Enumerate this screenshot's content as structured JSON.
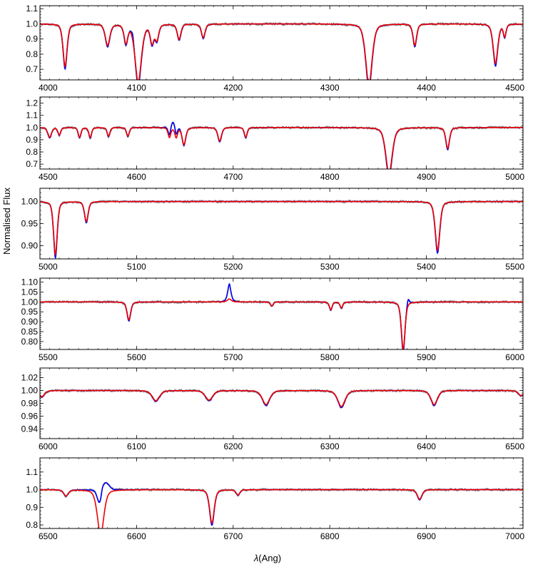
{
  "figure": {
    "ylabel": "Normalised Flux",
    "xlabel_prefix": "λ",
    "xlabel_unit": "(Ang)",
    "colors": {
      "observed": "#808080",
      "model_blue": "#0000ee",
      "model_red": "#ee0000",
      "frame": "#000000"
    }
  },
  "chart_data": [
    {
      "type": "line",
      "xlim": [
        4000,
        4500
      ],
      "ylim": [
        0.63,
        1.12
      ],
      "xticks": [
        4000,
        4100,
        4200,
        4300,
        4400,
        4500
      ],
      "yticks": [
        "0.7",
        "0.8",
        "0.9",
        "1.0",
        "1.1"
      ],
      "lines": [
        {
          "c": 4026,
          "d": 0.28,
          "w": 2.2
        },
        {
          "c": 4070,
          "d": 0.14,
          "w": 2.5
        },
        {
          "c": 4089,
          "d": 0.12,
          "w": 2.0
        },
        {
          "c": 4101.7,
          "d": 0.38,
          "w": 3.5
        },
        {
          "c": 4116,
          "d": 0.12,
          "w": 2.0
        },
        {
          "c": 4121,
          "d": 0.1,
          "w": 2.0
        },
        {
          "c": 4144,
          "d": 0.1,
          "w": 2.0
        },
        {
          "c": 4169,
          "d": 0.09,
          "w": 2.0
        },
        {
          "c": 4340.5,
          "d": 0.4,
          "w": 3.5
        },
        {
          "c": 4388,
          "d": 0.14,
          "w": 2.0
        },
        {
          "c": 4471.5,
          "d": 0.26,
          "w": 2.5
        },
        {
          "c": 4481,
          "d": 0.08,
          "w": 1.5
        }
      ],
      "emissions": [
        {
          "c": 4096,
          "h": 0.04,
          "w": 1.5,
          "s": "b"
        }
      ]
    },
    {
      "type": "line",
      "xlim": [
        4500,
        5000
      ],
      "ylim": [
        0.66,
        1.25
      ],
      "xticks": [
        4500,
        4600,
        4700,
        4800,
        4900,
        5000
      ],
      "yticks": [
        "0.7",
        "0.8",
        "0.9",
        "1.0",
        "1.1",
        "1.2"
      ],
      "lines": [
        {
          "c": 4510,
          "d": 0.08,
          "w": 2.0
        },
        {
          "c": 4520,
          "d": 0.06,
          "w": 1.5
        },
        {
          "c": 4541,
          "d": 0.08,
          "w": 1.5
        },
        {
          "c": 4552,
          "d": 0.08,
          "w": 1.5
        },
        {
          "c": 4571,
          "d": 0.07,
          "w": 1.5
        },
        {
          "c": 4591,
          "d": 0.07,
          "w": 1.5
        },
        {
          "c": 4634,
          "d": 0.08,
          "w": 1.5
        },
        {
          "c": 4641,
          "d": 0.08,
          "w": 1.5
        },
        {
          "c": 4649,
          "d": 0.14,
          "w": 2.0
        },
        {
          "c": 4686,
          "d": 0.11,
          "w": 2.0
        },
        {
          "c": 4713,
          "d": 0.08,
          "w": 1.5
        },
        {
          "c": 4861.3,
          "d": 0.38,
          "w": 3.5
        },
        {
          "c": 4922,
          "d": 0.17,
          "w": 2.0
        }
      ],
      "emissions": [
        {
          "c": 4638,
          "h": 0.06,
          "w": 4.0,
          "s": "b"
        }
      ]
    },
    {
      "type": "line",
      "xlim": [
        5000,
        5500
      ],
      "ylim": [
        0.87,
        1.03
      ],
      "xticks": [
        5000,
        5100,
        5200,
        5300,
        5400,
        5500
      ],
      "yticks": [
        "0.90",
        "0.95",
        "1.00"
      ],
      "lines": [
        {
          "c": 5016,
          "d": 0.12,
          "w": 2.0
        },
        {
          "c": 5048,
          "d": 0.045,
          "w": 2.0
        },
        {
          "c": 5411.5,
          "d": 0.11,
          "w": 2.5
        }
      ],
      "emissions": []
    },
    {
      "type": "line",
      "xlim": [
        5500,
        6000
      ],
      "ylim": [
        0.76,
        1.12
      ],
      "xticks": [
        5500,
        5600,
        5700,
        5800,
        5900,
        6000
      ],
      "yticks": [
        "0.80",
        "0.85",
        "0.90",
        "0.95",
        "1.00",
        "1.05",
        "1.10"
      ],
      "lines": [
        {
          "c": 5592,
          "d": 0.09,
          "w": 2.0
        },
        {
          "c": 5740,
          "d": 0.02,
          "w": 1.5
        },
        {
          "c": 5801,
          "d": 0.04,
          "w": 1.5
        },
        {
          "c": 5812,
          "d": 0.03,
          "w": 1.5
        },
        {
          "c": 5876,
          "d": 0.24,
          "w": 2.0
        }
      ],
      "emissions": [
        {
          "c": 5696,
          "h": 0.07,
          "w": 2.0,
          "s": "b"
        },
        {
          "c": 5696,
          "h": 0.015,
          "w": 2.5,
          "s": "r"
        },
        {
          "c": 5881,
          "h": 0.03,
          "w": 1.5,
          "s": "b"
        }
      ]
    },
    {
      "type": "line",
      "xlim": [
        6000,
        6500
      ],
      "ylim": [
        0.925,
        1.035
      ],
      "xticks": [
        6000,
        6100,
        6200,
        6300,
        6400,
        6500
      ],
      "yticks": [
        "0.94",
        "0.96",
        "0.98",
        "1.00",
        "1.02"
      ],
      "lines": [
        {
          "c": 6002,
          "d": 0.01,
          "w": 3.0
        },
        {
          "c": 6120,
          "d": 0.016,
          "w": 4.0
        },
        {
          "c": 6175,
          "d": 0.015,
          "w": 4.0
        },
        {
          "c": 6234,
          "d": 0.022,
          "w": 4.0
        },
        {
          "c": 6312,
          "d": 0.025,
          "w": 4.0
        },
        {
          "c": 6408,
          "d": 0.022,
          "w": 3.5
        },
        {
          "c": 6498,
          "d": 0.008,
          "w": 3.0
        }
      ],
      "emissions": []
    },
    {
      "type": "line",
      "xlim": [
        6500,
        7000
      ],
      "ylim": [
        0.78,
        1.18
      ],
      "xticks": [
        6500,
        6600,
        6700,
        6800,
        6900,
        7000
      ],
      "yticks": [
        "0.8",
        "0.9",
        "1.0",
        "1.1"
      ],
      "lines": [
        {
          "c": 6527,
          "d": 0.035,
          "w": 2.5
        },
        {
          "c": 6562.8,
          "d": 0.26,
          "w": 3.5
        },
        {
          "c": 6678,
          "d": 0.19,
          "w": 2.5
        },
        {
          "c": 6705,
          "d": 0.03,
          "w": 2.0
        },
        {
          "c": 6893,
          "d": 0.055,
          "w": 2.5
        }
      ],
      "emissions": [
        {
          "c": 6564,
          "h": 0.23,
          "w": 4.5,
          "s": "b"
        }
      ]
    }
  ]
}
